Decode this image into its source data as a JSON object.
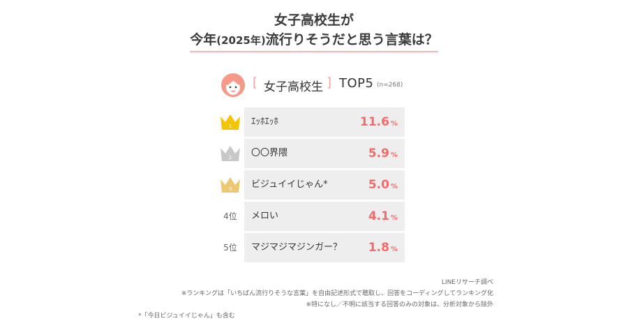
{
  "title": {
    "line1": "女子高校生が",
    "line2_pre": "今年",
    "line2_paren": "(2025年)",
    "line2_post": "流行りそうだと思う言葉は？"
  },
  "subhead": {
    "bracket_open": "[",
    "group": "女子高校生",
    "bracket_close": "]",
    "top": "TOP5",
    "n": "(n=268)"
  },
  "chart_data": {
    "type": "table",
    "title": "女子高校生が今年(2025年)流行りそうだと思う言葉は？",
    "rows": [
      {
        "rank": "1",
        "label": "ｴｯﾎｴｯﾎ",
        "value": 11.6,
        "value_text": "11.6",
        "unit": "%"
      },
      {
        "rank": "2",
        "label": "〇〇界隈",
        "value": 5.9,
        "value_text": "5.9",
        "unit": "%"
      },
      {
        "rank": "3",
        "label": "ビジュイイじゃん*",
        "value": 5.0,
        "value_text": "5.0",
        "unit": "%"
      },
      {
        "rank": "4位",
        "label": "メロい",
        "value": 4.1,
        "value_text": "4.1",
        "unit": "%"
      },
      {
        "rank": "5位",
        "label": "マジマジマジンガー？",
        "value": 1.8,
        "value_text": "1.8",
        "unit": "%"
      }
    ]
  },
  "colors": {
    "gold": "#f5c400",
    "silver": "#c8c8c8",
    "bronze": "#eec870",
    "value": "#f26b6b",
    "row_bg": "#eeeeee",
    "accent": "#f7b6b6"
  },
  "notes": {
    "source": "LINEリサーチ調べ",
    "note1": "※ランキングは「いちばん流行りそうな言葉」を自由記述形式で聴取し、回答をコーディングしてランキング化",
    "note2": "※特になし／不明に該当する回答のみの対象は、分析対象から除外",
    "note3": "*「今日ビジュイイじゃん」も含む"
  }
}
